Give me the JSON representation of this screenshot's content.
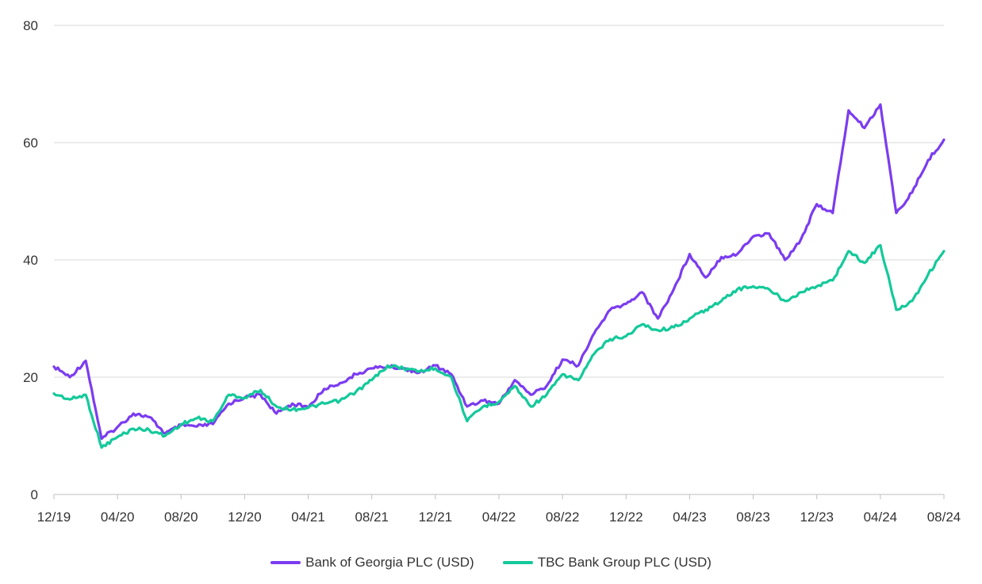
{
  "chart_data": {
    "type": "line",
    "title": "",
    "xlabel": "",
    "ylabel": "",
    "ylim": [
      0,
      80
    ],
    "yticks": [
      0,
      20,
      40,
      60,
      80
    ],
    "xlim": [
      "2019-12",
      "2024-08"
    ],
    "xticks": [
      "12/19",
      "04/20",
      "08/20",
      "12/20",
      "04/21",
      "08/21",
      "12/21",
      "04/22",
      "08/22",
      "12/22",
      "04/23",
      "08/23",
      "12/23",
      "04/24",
      "08/24"
    ],
    "grid": "horizontal",
    "legend_position": "bottom",
    "series": [
      {
        "name": "Bank of Georgia PLC (USD)",
        "color": "#7b3cf0",
        "points": [
          [
            "2019-12",
            21.8
          ],
          [
            "2020-01",
            20.0
          ],
          [
            "2020-02",
            22.8
          ],
          [
            "2020-03",
            9.5
          ],
          [
            "2020-04",
            11.5
          ],
          [
            "2020-05",
            13.8
          ],
          [
            "2020-06",
            13.2
          ],
          [
            "2020-07",
            10.4
          ],
          [
            "2020-08",
            11.8
          ],
          [
            "2020-09",
            11.6
          ],
          [
            "2020-10",
            12.0
          ],
          [
            "2020-11",
            15.5
          ],
          [
            "2020-12",
            16.5
          ],
          [
            "2021-01",
            17.0
          ],
          [
            "2021-02",
            13.8
          ],
          [
            "2021-03",
            15.5
          ],
          [
            "2021-04",
            14.8
          ],
          [
            "2021-05",
            18.0
          ],
          [
            "2021-06",
            19.0
          ],
          [
            "2021-07",
            20.5
          ],
          [
            "2021-08",
            21.5
          ],
          [
            "2021-09",
            21.8
          ],
          [
            "2021-10",
            21.5
          ],
          [
            "2021-11",
            20.8
          ],
          [
            "2021-12",
            22.0
          ],
          [
            "2022-01",
            20.5
          ],
          [
            "2022-02",
            15.0
          ],
          [
            "2022-03",
            16.0
          ],
          [
            "2022-04",
            15.5
          ],
          [
            "2022-05",
            19.5
          ],
          [
            "2022-06",
            17.0
          ],
          [
            "2022-07",
            18.5
          ],
          [
            "2022-08",
            23.0
          ],
          [
            "2022-09",
            22.0
          ],
          [
            "2022-10",
            27.5
          ],
          [
            "2022-11",
            31.5
          ],
          [
            "2022-12",
            32.5
          ],
          [
            "2023-01",
            34.5
          ],
          [
            "2023-02",
            30.0
          ],
          [
            "2023-03",
            35.0
          ],
          [
            "2023-04",
            41.0
          ],
          [
            "2023-05",
            37.0
          ],
          [
            "2023-06",
            40.5
          ],
          [
            "2023-07",
            41.0
          ],
          [
            "2023-08",
            44.0
          ],
          [
            "2023-09",
            44.5
          ],
          [
            "2023-10",
            40.0
          ],
          [
            "2023-11",
            43.5
          ],
          [
            "2023-12",
            49.5
          ],
          [
            "2024-01",
            48.0
          ],
          [
            "2024-02",
            65.5
          ],
          [
            "2024-03",
            62.5
          ],
          [
            "2024-04",
            66.5
          ],
          [
            "2024-05",
            48.0
          ],
          [
            "2024-06",
            51.5
          ],
          [
            "2024-07",
            57.0
          ],
          [
            "2024-08",
            60.5
          ]
        ]
      },
      {
        "name": "TBC Bank Group PLC (USD)",
        "color": "#14c99a",
        "points": [
          [
            "2019-12",
            17.2
          ],
          [
            "2020-01",
            16.2
          ],
          [
            "2020-02",
            17.0
          ],
          [
            "2020-03",
            8.0
          ],
          [
            "2020-04",
            9.8
          ],
          [
            "2020-05",
            11.2
          ],
          [
            "2020-06",
            11.0
          ],
          [
            "2020-07",
            10.0
          ],
          [
            "2020-08",
            12.0
          ],
          [
            "2020-09",
            13.0
          ],
          [
            "2020-10",
            12.5
          ],
          [
            "2020-11",
            17.0
          ],
          [
            "2020-12",
            16.5
          ],
          [
            "2021-01",
            17.8
          ],
          [
            "2021-02",
            15.0
          ],
          [
            "2021-03",
            14.5
          ],
          [
            "2021-04",
            14.8
          ],
          [
            "2021-05",
            15.5
          ],
          [
            "2021-06",
            16.0
          ],
          [
            "2021-07",
            17.5
          ],
          [
            "2021-08",
            19.5
          ],
          [
            "2021-09",
            22.0
          ],
          [
            "2021-10",
            21.5
          ],
          [
            "2021-11",
            21.0
          ],
          [
            "2021-12",
            21.5
          ],
          [
            "2022-01",
            20.0
          ],
          [
            "2022-02",
            12.5
          ],
          [
            "2022-03",
            15.0
          ],
          [
            "2022-04",
            15.8
          ],
          [
            "2022-05",
            18.5
          ],
          [
            "2022-06",
            15.0
          ],
          [
            "2022-07",
            17.0
          ],
          [
            "2022-08",
            20.5
          ],
          [
            "2022-09",
            19.5
          ],
          [
            "2022-10",
            24.0
          ],
          [
            "2022-11",
            26.5
          ],
          [
            "2022-12",
            27.0
          ],
          [
            "2023-01",
            29.0
          ],
          [
            "2023-02",
            28.0
          ],
          [
            "2023-03",
            28.5
          ],
          [
            "2023-04",
            30.0
          ],
          [
            "2023-05",
            31.5
          ],
          [
            "2023-06",
            33.0
          ],
          [
            "2023-07",
            35.0
          ],
          [
            "2023-08",
            35.5
          ],
          [
            "2023-09",
            35.0
          ],
          [
            "2023-10",
            33.0
          ],
          [
            "2023-11",
            34.5
          ],
          [
            "2023-12",
            35.5
          ],
          [
            "2024-01",
            36.5
          ],
          [
            "2024-02",
            41.5
          ],
          [
            "2024-03",
            39.5
          ],
          [
            "2024-04",
            42.5
          ],
          [
            "2024-05",
            31.5
          ],
          [
            "2024-06",
            33.0
          ],
          [
            "2024-07",
            37.5
          ],
          [
            "2024-08",
            41.5
          ]
        ]
      }
    ]
  }
}
